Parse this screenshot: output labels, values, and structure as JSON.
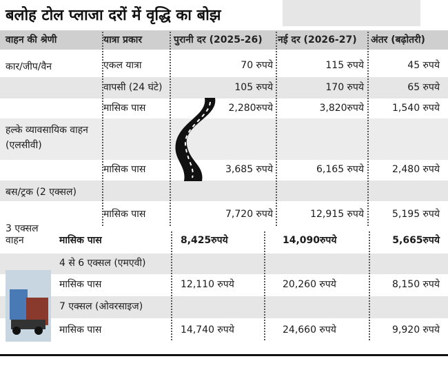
{
  "title": "बलोह टोल प्लाजा दरों में वृद्धि का बोझ",
  "table": {
    "header": [
      "वाहन की श्रेणी",
      "यात्रा प्रकार",
      "पुरानी दर (2025-26)",
      "नई दर (2026-27)",
      "अंतर (बढ़ोतरी)"
    ],
    "rows": [
      {
        "category": "कार/जीप/वैन",
        "trip": "एकल यात्रा",
        "old": "70 रुपये",
        "new": "115 रुपये",
        "diff": "45 रुपये"
      },
      {
        "trip": "वापसी (24 घंटे)",
        "old": "105 रुपये",
        "new": "170 रुपये",
        "diff": "65 रुपये"
      },
      {
        "trip": "मासिक पास",
        "old": "2,280रुपये",
        "new": "3,820रुपये",
        "diff": "1,540 रुपये"
      },
      {
        "category": "हल्के व्यावसायिक वाहन (एलसीवी)"
      },
      {
        "trip": "मासिक पास",
        "old": "3,685 रुपये",
        "new": "6,165 रुपये",
        "diff": "2,480 रुपये"
      },
      {
        "category": "बस/ट्रक (2 एक्सल)"
      },
      {
        "trip": "मासिक पास",
        "old": "7,720 रुपये",
        "new": "12,915 रुपये",
        "diff": "5,195 रुपये"
      },
      {
        "category": "3 एक्सल वाहन",
        "trip": "मासिक पास",
        "old": "8,425रुपये",
        "new": "14,090रुपये",
        "diff": "5,665रुपये"
      },
      {
        "category": "4 से 6 एक्सल (एमएवी)"
      },
      {
        "trip": "मासिक पास",
        "old": "12,110 रुपये",
        "new": "20,260 रुपये",
        "diff": "8,150 रुपये"
      },
      {
        "category": "7 एक्सल (ओवरसाइज)"
      },
      {
        "trip": "मासिक पास",
        "old": "14,740 रुपये",
        "new": "24,660 रुपये",
        "diff": "9,920 रुपये"
      }
    ]
  }
}
